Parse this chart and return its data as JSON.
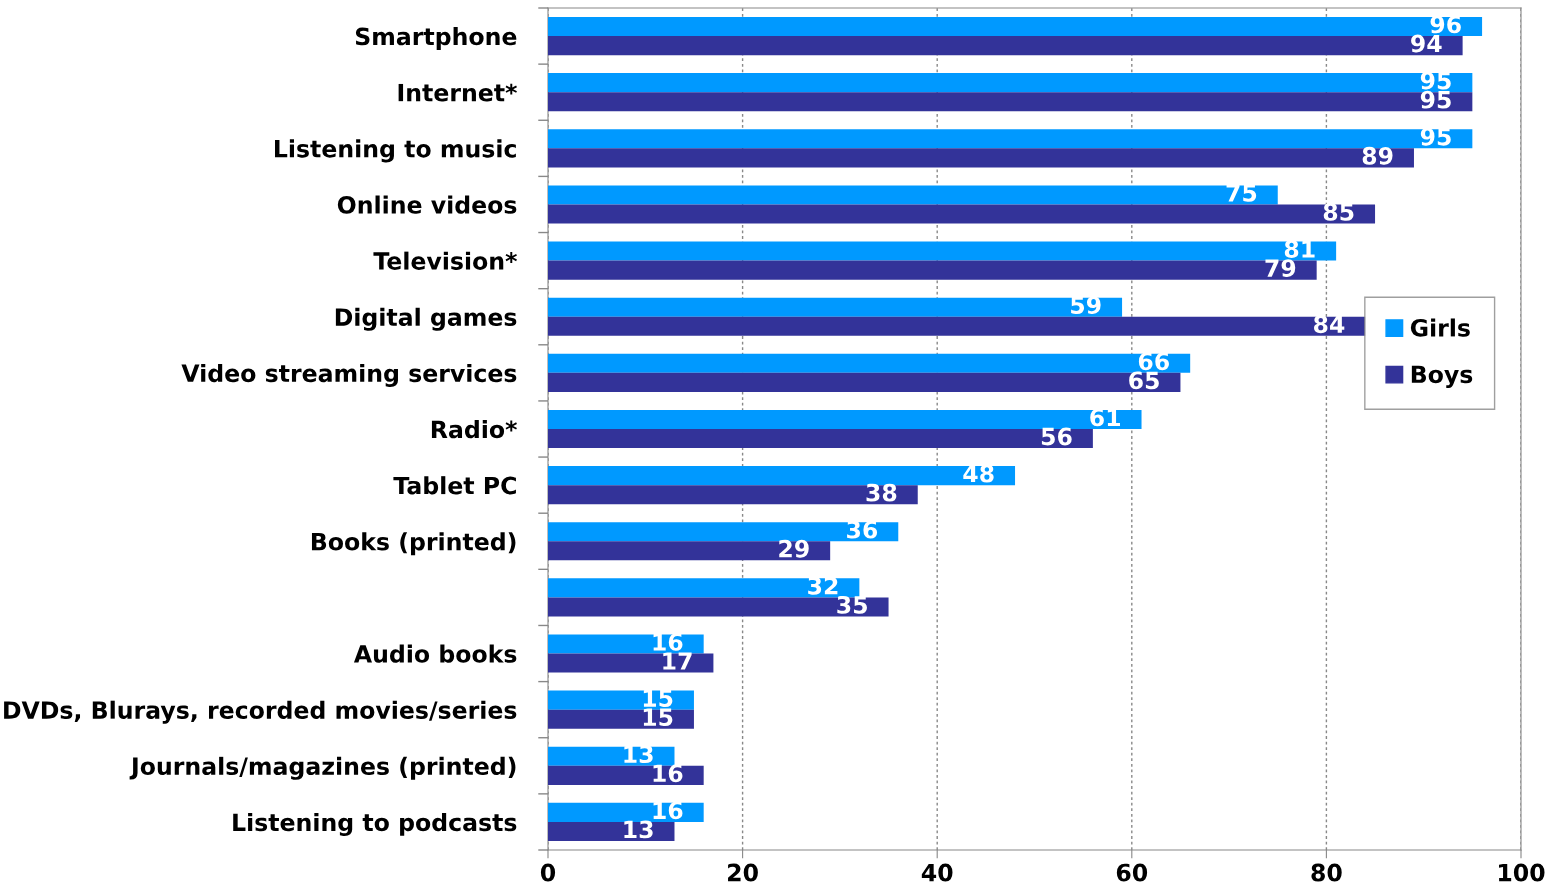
{
  "chart_data": {
    "type": "bar",
    "orientation": "horizontal",
    "categories": [
      "Smartphone",
      "Internet*",
      "Listening to music",
      "Online videos",
      "Television*",
      "Digital games",
      "Video streaming services",
      "Radio*",
      "Tablet PC",
      "Books (printed)",
      null,
      "Audio books",
      "DVDs, Blurays, recorded movies/series",
      "Journals/magazines (printed)",
      "Listening to podcasts"
    ],
    "series": [
      {
        "name": "Girls",
        "color": "#0099ff",
        "values": [
          96,
          95,
          95,
          75,
          81,
          59,
          66,
          61,
          48,
          36,
          32,
          16,
          15,
          13,
          16
        ]
      },
      {
        "name": "Boys",
        "color": "#333399",
        "values": [
          94,
          95,
          89,
          85,
          79,
          84,
          65,
          56,
          38,
          29,
          35,
          17,
          15,
          16,
          13
        ]
      }
    ],
    "xlim": [
      0,
      100
    ],
    "xticks": [
      0,
      20,
      40,
      60,
      80,
      100
    ],
    "grid": "x",
    "legend": "right",
    "data_labels": true
  }
}
